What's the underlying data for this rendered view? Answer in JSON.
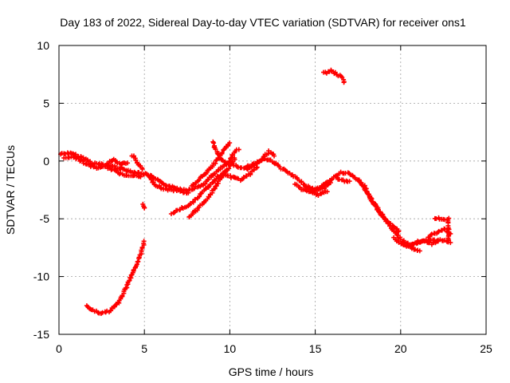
{
  "chart_data": {
    "type": "scatter",
    "title": "Day 183 of 2022, Sidereal Day-to-day VTEC variation (SDTVAR) for receiver ons1",
    "xlabel": "GPS time / hours",
    "ylabel": "SDTVAR / TECUs",
    "xlim": [
      0,
      25
    ],
    "ylim": [
      -15,
      10
    ],
    "xticks": [
      0,
      5,
      10,
      15,
      20,
      25
    ],
    "yticks": [
      -15,
      -10,
      -5,
      0,
      5,
      10
    ],
    "xtick_labels": [
      "0",
      "5",
      "10",
      "15",
      "20",
      "25"
    ],
    "ytick_labels": [
      "-15",
      "-10",
      "-5",
      "0",
      "5",
      "10"
    ],
    "grid": true,
    "marker": "plus",
    "series": [
      {
        "name": "SDTVAR",
        "color": "#ff0000",
        "tracks": [
          [
            [
              0.1,
              0.6
            ],
            [
              0.5,
              0.7
            ],
            [
              1.0,
              0.5
            ],
            [
              1.5,
              0.2
            ],
            [
              2.0,
              -0.2
            ],
            [
              2.5,
              -0.3
            ],
            [
              3.0,
              -0.4
            ],
            [
              3.5,
              -0.6
            ],
            [
              4.0,
              -0.8
            ],
            [
              4.5,
              -1.0
            ],
            [
              5.0,
              -1.1
            ],
            [
              5.5,
              -1.4
            ],
            [
              6.0,
              -1.9
            ],
            [
              6.5,
              -2.2
            ],
            [
              7.0,
              -2.4
            ],
            [
              7.5,
              -2.5
            ],
            [
              8.0,
              -2.3
            ],
            [
              8.5,
              -2.0
            ],
            [
              9.0,
              -1.2
            ],
            [
              9.5,
              -0.6
            ],
            [
              10.0,
              -0.1
            ],
            [
              10.5,
              -0.6
            ],
            [
              11.0,
              -0.5
            ],
            [
              11.5,
              -0.2
            ],
            [
              12.0,
              0.2
            ],
            [
              12.5,
              0.0
            ],
            [
              13.0,
              -0.6
            ],
            [
              13.5,
              -1.1
            ],
            [
              14.0,
              -1.6
            ],
            [
              14.5,
              -2.2
            ],
            [
              15.0,
              -2.5
            ],
            [
              15.5,
              -2.1
            ],
            [
              16.0,
              -1.5
            ],
            [
              16.5,
              -1.0
            ],
            [
              17.0,
              -1.1
            ],
            [
              17.5,
              -1.6
            ],
            [
              18.0,
              -2.6
            ],
            [
              18.5,
              -3.8
            ],
            [
              19.0,
              -4.8
            ],
            [
              19.5,
              -5.9
            ],
            [
              20.0,
              -6.8
            ],
            [
              20.5,
              -7.2
            ],
            [
              21.0,
              -7.1
            ],
            [
              21.5,
              -6.9
            ],
            [
              22.0,
              -6.8
            ],
            [
              22.5,
              -6.9
            ],
            [
              22.9,
              -7.0
            ]
          ],
          [
            [
              0.3,
              0.3
            ],
            [
              0.8,
              0.4
            ],
            [
              1.3,
              0.0
            ],
            [
              1.8,
              -0.4
            ],
            [
              2.3,
              -0.6
            ],
            [
              2.8,
              -0.5
            ],
            [
              3.3,
              -0.9
            ],
            [
              3.8,
              -1.2
            ],
            [
              4.3,
              -1.2
            ],
            [
              4.8,
              -1.4
            ]
          ],
          [
            [
              2.8,
              -0.2
            ],
            [
              3.2,
              0.1
            ],
            [
              3.6,
              -0.3
            ],
            [
              4.0,
              -0.1
            ]
          ],
          [
            [
              4.3,
              0.5
            ],
            [
              4.6,
              -0.2
            ],
            [
              4.9,
              -0.7
            ]
          ],
          [
            [
              5.2,
              -1.2
            ],
            [
              5.6,
              -2.0
            ],
            [
              6.1,
              -2.4
            ],
            [
              6.6,
              -2.5
            ],
            [
              7.1,
              -2.6
            ],
            [
              7.6,
              -2.8
            ]
          ],
          [
            [
              4.9,
              -3.8
            ],
            [
              5.0,
              -4.1
            ]
          ],
          [
            [
              6.6,
              -4.5
            ],
            [
              7.2,
              -4.1
            ],
            [
              7.8,
              -3.6
            ],
            [
              8.3,
              -2.9
            ],
            [
              8.8,
              -2.1
            ],
            [
              9.3,
              -1.4
            ],
            [
              9.8,
              -0.8
            ]
          ],
          [
            [
              7.6,
              -4.9
            ],
            [
              8.0,
              -4.3
            ],
            [
              8.5,
              -3.6
            ],
            [
              9.0,
              -2.6
            ],
            [
              9.5,
              -1.4
            ],
            [
              10.0,
              -0.5
            ],
            [
              10.3,
              0.2
            ]
          ],
          [
            [
              7.8,
              -2.2
            ],
            [
              8.3,
              -1.4
            ],
            [
              8.8,
              -0.8
            ],
            [
              9.3,
              0.2
            ],
            [
              9.7,
              1.1
            ],
            [
              10.0,
              1.6
            ]
          ],
          [
            [
              9.0,
              1.6
            ],
            [
              9.3,
              0.6
            ],
            [
              9.6,
              0.0
            ],
            [
              9.9,
              -0.2
            ],
            [
              10.2,
              0.6
            ],
            [
              10.5,
              1.0
            ]
          ],
          [
            [
              9.6,
              -1.1
            ],
            [
              10.1,
              -1.4
            ],
            [
              10.6,
              -1.6
            ],
            [
              11.1,
              -1.2
            ],
            [
              11.6,
              -0.6
            ]
          ],
          [
            [
              11.0,
              -0.7
            ],
            [
              11.4,
              -0.4
            ],
            [
              11.9,
              0.2
            ],
            [
              12.3,
              0.8
            ],
            [
              12.6,
              0.4
            ]
          ],
          [
            [
              13.8,
              -2.0
            ],
            [
              14.2,
              -2.4
            ],
            [
              14.7,
              -2.7
            ],
            [
              15.2,
              -2.9
            ],
            [
              15.7,
              -2.6
            ]
          ],
          [
            [
              14.5,
              -2.3
            ],
            [
              15.0,
              -2.6
            ],
            [
              15.5,
              -2.3
            ],
            [
              15.9,
              -1.9
            ]
          ],
          [
            [
              16.2,
              -1.4
            ],
            [
              16.6,
              -1.7
            ],
            [
              17.0,
              -1.8
            ]
          ],
          [
            [
              17.5,
              -1.7
            ],
            [
              17.9,
              -2.2
            ],
            [
              18.3,
              -3.4
            ],
            [
              18.7,
              -4.4
            ],
            [
              19.1,
              -5.1
            ],
            [
              19.5,
              -5.6
            ],
            [
              19.9,
              -6.1
            ]
          ],
          [
            [
              19.6,
              -6.7
            ],
            [
              20.0,
              -7.1
            ],
            [
              20.4,
              -7.4
            ],
            [
              20.8,
              -7.6
            ],
            [
              21.1,
              -7.8
            ]
          ],
          [
            [
              20.6,
              -7.3
            ],
            [
              21.0,
              -7.0
            ],
            [
              21.4,
              -6.9
            ],
            [
              21.8,
              -7.2
            ],
            [
              22.2,
              -6.9
            ]
          ],
          [
            [
              21.6,
              -6.6
            ],
            [
              22.1,
              -6.2
            ],
            [
              22.6,
              -5.9
            ],
            [
              22.9,
              -6.3
            ]
          ],
          [
            [
              22.0,
              -4.9
            ],
            [
              22.4,
              -5.0
            ],
            [
              22.8,
              -5.0
            ],
            [
              22.8,
              -6.0
            ],
            [
              22.8,
              -6.9
            ]
          ],
          [
            [
              15.5,
              7.6
            ],
            [
              15.9,
              7.8
            ],
            [
              16.2,
              7.6
            ],
            [
              16.6,
              7.2
            ],
            [
              16.7,
              6.8
            ]
          ],
          [
            [
              1.6,
              -12.6
            ],
            [
              2.0,
              -12.9
            ],
            [
              2.5,
              -13.2
            ],
            [
              3.0,
              -13.0
            ],
            [
              3.5,
              -12.2
            ],
            [
              4.0,
              -10.8
            ],
            [
              4.4,
              -9.4
            ],
            [
              4.8,
              -8.0
            ],
            [
              5.0,
              -7.0
            ]
          ]
        ]
      }
    ]
  }
}
